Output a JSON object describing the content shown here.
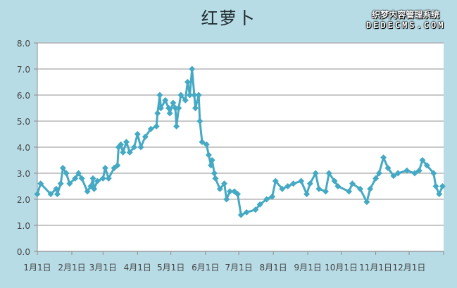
{
  "chart_data": {
    "type": "line",
    "title": "红萝卜",
    "xlabel": "",
    "ylabel": "",
    "ylim": [
      0,
      8
    ],
    "yticks": [
      "0.0",
      "1.0",
      "2.0",
      "3.0",
      "4.0",
      "5.0",
      "6.0",
      "7.0",
      "8.0"
    ],
    "xtick_labels": [
      "1月1日",
      "2月1日",
      "3月1日",
      "4月1日",
      "5月1日",
      "6月1日",
      "7月1日",
      "8月1日",
      "9月1日",
      "10月1日",
      "11月1日",
      "12月1日"
    ],
    "grid": true,
    "legend": "none",
    "marker": "diamond",
    "colors": {
      "line": "#45a9c4",
      "background": "#b8dce6",
      "plot": "#ffffff",
      "grid": "#a6a6a6"
    },
    "series": [
      {
        "x": [
          "01-01",
          "01-04",
          "01-13",
          "01-18",
          "01-19",
          "01-22",
          "01-24",
          "01-27",
          "01-30",
          "02-04",
          "02-07",
          "02-10",
          "02-15",
          "02-18",
          "02-20",
          "02-21",
          "02-24",
          "03-01",
          "03-03",
          "03-06",
          "03-11",
          "03-14",
          "03-15",
          "03-17",
          "03-19",
          "03-22",
          "03-25",
          "03-29",
          "04-01",
          "04-04",
          "04-08",
          "04-13",
          "04-18",
          "04-19",
          "04-21",
          "04-22",
          "04-26",
          "04-29",
          "04-30",
          "05-03",
          "05-05",
          "05-06",
          "05-08",
          "05-10",
          "05-14",
          "05-16",
          "05-18",
          "05-20",
          "05-22",
          "05-23",
          "05-26",
          "05-27",
          "05-29",
          "06-02",
          "06-04",
          "06-06",
          "06-07",
          "06-09",
          "06-10",
          "06-14",
          "06-18",
          "06-20",
          "06-23",
          "06-27",
          "06-30",
          "07-03",
          "07-08",
          "07-16",
          "07-20",
          "07-26",
          "07-31",
          "08-03",
          "08-09",
          "08-14",
          "08-19",
          "08-26",
          "08-31",
          "09-03",
          "09-08",
          "09-11",
          "09-17",
          "09-20",
          "09-25",
          "09-28",
          "10-08",
          "10-11",
          "10-18",
          "10-24",
          "10-27",
          "11-01",
          "11-04",
          "11-08",
          "11-12",
          "11-17",
          "11-21",
          "11-29",
          "12-06",
          "12-10",
          "12-13",
          "12-17",
          "12-23",
          "12-25",
          "12-28",
          "12-31"
        ],
        "values": [
          2.2,
          2.6,
          2.2,
          2.4,
          2.2,
          2.6,
          3.2,
          3.0,
          2.6,
          2.8,
          3.0,
          2.8,
          2.3,
          2.5,
          2.8,
          2.4,
          2.7,
          2.8,
          3.2,
          2.8,
          3.2,
          3.3,
          4.0,
          4.1,
          3.8,
          4.2,
          3.8,
          4.0,
          4.5,
          4.0,
          4.4,
          4.7,
          4.8,
          5.3,
          6.0,
          5.5,
          5.8,
          5.5,
          5.3,
          5.7,
          5.5,
          4.8,
          5.5,
          6.0,
          5.8,
          6.5,
          6.0,
          7.0,
          6.0,
          5.5,
          6.0,
          5.0,
          4.2,
          4.1,
          3.7,
          3.3,
          3.5,
          3.0,
          2.8,
          2.4,
          2.6,
          2.0,
          2.3,
          2.3,
          2.2,
          1.4,
          1.5,
          1.6,
          1.8,
          2.0,
          2.1,
          2.7,
          2.4,
          2.5,
          2.6,
          2.7,
          2.2,
          2.6,
          3.0,
          2.4,
          2.3,
          3.0,
          2.7,
          2.5,
          2.3,
          2.6,
          2.4,
          1.9,
          2.4,
          2.8,
          3.0,
          3.6,
          3.2,
          2.9,
          3.0,
          3.1,
          3.0,
          3.1,
          3.5,
          3.3,
          3.0,
          2.5,
          2.2,
          2.5
        ]
      }
    ]
  },
  "watermark": {
    "line1": "织梦内容管理系统",
    "line2": "DEDECMS.COM"
  }
}
